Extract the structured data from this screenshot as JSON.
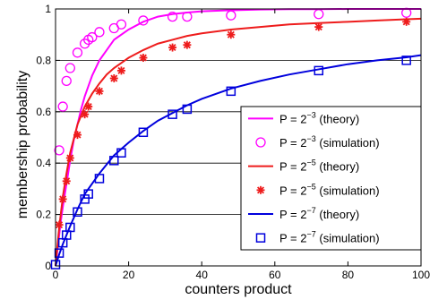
{
  "chart_data": {
    "type": "line",
    "xlabel": "counters product",
    "ylabel": "membership probability",
    "xlim": [
      0,
      100
    ],
    "ylim": [
      0,
      1
    ],
    "x_ticks": [
      "0",
      "20",
      "40",
      "60",
      "80",
      "100"
    ],
    "y_ticks": [
      "0",
      "0.2",
      "0.4",
      "0.6",
      "0.8",
      "1"
    ],
    "grid": "horizontal",
    "legend_position": "bottom-right",
    "series": [
      {
        "name": "P = 2⁻³ (theory)",
        "legend_base": "P = 2",
        "legend_exp": "−3",
        "legend_suffix": " (theory)",
        "kind": "theory",
        "p_exponent": -3,
        "color": "#ff00ff",
        "x": [
          0,
          0.5,
          1,
          1.5,
          2,
          3,
          4,
          5,
          6,
          7,
          8,
          9,
          10,
          12,
          14,
          16,
          18,
          20,
          24,
          28,
          32,
          36,
          40,
          48,
          56,
          64,
          72,
          80,
          88,
          96,
          100
        ],
        "y": [
          0,
          0.06,
          0.12,
          0.18,
          0.23,
          0.32,
          0.41,
          0.49,
          0.55,
          0.61,
          0.66,
          0.7,
          0.74,
          0.8,
          0.84,
          0.88,
          0.9,
          0.92,
          0.95,
          0.97,
          0.98,
          0.986,
          0.991,
          0.995,
          0.998,
          0.999,
          0.999,
          1.0,
          1.0,
          1.0,
          1.0
        ]
      },
      {
        "name": "P = 2⁻³ (simulation)",
        "legend_base": "P = 2",
        "legend_exp": "−3",
        "legend_suffix": " (simulation)",
        "kind": "simulation",
        "marker": "circle",
        "color": "#ff00ff",
        "x": [
          1,
          2,
          3,
          4,
          6,
          8,
          9,
          10,
          12,
          16,
          18,
          24,
          32,
          36,
          48,
          72,
          96
        ],
        "y": [
          0.45,
          0.62,
          0.72,
          0.77,
          0.83,
          0.865,
          0.88,
          0.89,
          0.91,
          0.925,
          0.94,
          0.955,
          0.97,
          0.97,
          0.975,
          0.98,
          0.985
        ]
      },
      {
        "name": "P = 2⁻⁵ (theory)",
        "legend_base": "P = 2",
        "legend_exp": "−5",
        "legend_suffix": " (theory)",
        "kind": "theory",
        "color": "#ee1c1c",
        "x": [
          0,
          1,
          2,
          3,
          4,
          6,
          8,
          10,
          12,
          14,
          16,
          18,
          20,
          24,
          28,
          32,
          36,
          40,
          48,
          56,
          64,
          72,
          80,
          88,
          96,
          100
        ],
        "y": [
          0,
          0.15,
          0.27,
          0.36,
          0.44,
          0.55,
          0.62,
          0.67,
          0.71,
          0.745,
          0.77,
          0.79,
          0.81,
          0.84,
          0.865,
          0.88,
          0.895,
          0.905,
          0.92,
          0.93,
          0.94,
          0.945,
          0.95,
          0.955,
          0.96,
          0.962
        ]
      },
      {
        "name": "P = 2⁻⁵ (simulation)",
        "legend_base": "P = 2",
        "legend_exp": "−5",
        "legend_suffix": " (simulation)",
        "kind": "simulation",
        "marker": "asterisk",
        "color": "#ee1c1c",
        "x": [
          1,
          2,
          3,
          4,
          6,
          8,
          9,
          12,
          16,
          18,
          24,
          32,
          36,
          48,
          72,
          96
        ],
        "y": [
          0.16,
          0.26,
          0.33,
          0.42,
          0.51,
          0.59,
          0.62,
          0.68,
          0.73,
          0.76,
          0.81,
          0.85,
          0.86,
          0.9,
          0.93,
          0.95
        ]
      },
      {
        "name": "P = 2⁻⁷ (theory)",
        "legend_base": "P = 2",
        "legend_exp": "−7",
        "legend_suffix": " (theory)",
        "kind": "theory",
        "color": "#0000dd",
        "x": [
          0,
          1,
          2,
          3,
          4,
          6,
          8,
          10,
          12,
          14,
          16,
          18,
          20,
          24,
          28,
          32,
          36,
          40,
          48,
          56,
          64,
          72,
          80,
          88,
          96,
          100
        ],
        "y": [
          0,
          0.045,
          0.085,
          0.12,
          0.155,
          0.22,
          0.28,
          0.32,
          0.36,
          0.395,
          0.43,
          0.455,
          0.48,
          0.525,
          0.565,
          0.595,
          0.625,
          0.65,
          0.69,
          0.72,
          0.745,
          0.765,
          0.785,
          0.8,
          0.812,
          0.82
        ]
      },
      {
        "name": "P = 2⁻⁷ (simulation)",
        "legend_base": "P = 2",
        "legend_exp": "−7",
        "legend_suffix": " (simulation)",
        "kind": "simulation",
        "marker": "square",
        "color": "#0000dd",
        "x": [
          0,
          1,
          2,
          3,
          4,
          6,
          8,
          9,
          12,
          16,
          18,
          24,
          32,
          36,
          48,
          72,
          96
        ],
        "y": [
          0.005,
          0.05,
          0.09,
          0.12,
          0.15,
          0.21,
          0.26,
          0.28,
          0.34,
          0.41,
          0.44,
          0.52,
          0.59,
          0.61,
          0.68,
          0.76,
          0.8
        ]
      }
    ]
  }
}
